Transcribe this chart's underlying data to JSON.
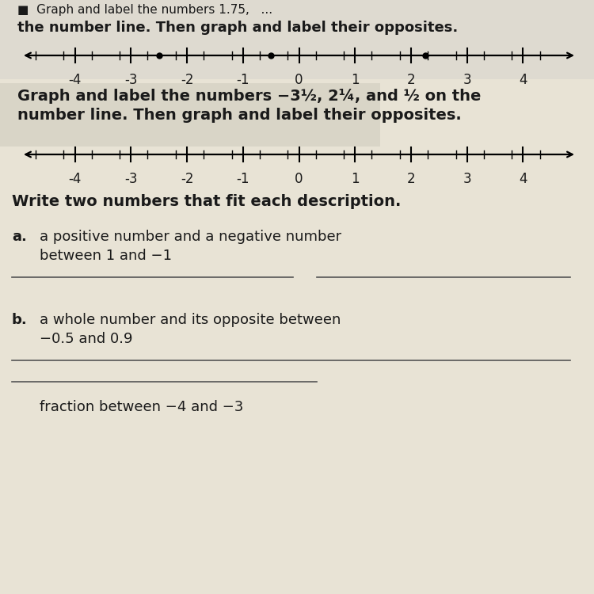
{
  "bg_color": "#e8e3d5",
  "text_color": "#1a1a1a",
  "line_color": "#555555",
  "tick_color": "#111111",
  "font_size_title": 14,
  "font_size_body": 13,
  "font_size_axis": 12,
  "top_text1": "Graph and label the numbers 1.75,   ...",
  "top_text2": "the number line. Then graph and label their opposites.",
  "title_line1": "Graph and label the numbers −3½, 2¼, and ½ on the",
  "title_line2": "number line. Then graph and label their opposites.",
  "section_header": "Write two numbers that fit each description.",
  "item_a_label": "a.",
  "item_a_text1": "a positive number and a negative number",
  "item_a_text2": "between 1 and −1",
  "item_b_label": "b.",
  "item_b_text1": "a whole number and its opposite between",
  "item_b_text2": "−0.5 and 0.9",
  "bottom_partial": "fraction between −4 and −3",
  "nl1_dots": [
    -2.5,
    -0.5,
    2.25
  ],
  "nl2_dots": [],
  "xmin": -4.7,
  "xmax": 4.7,
  "tick_integers": [
    -4,
    -3,
    -2,
    -1,
    0,
    1,
    2,
    3,
    4
  ]
}
